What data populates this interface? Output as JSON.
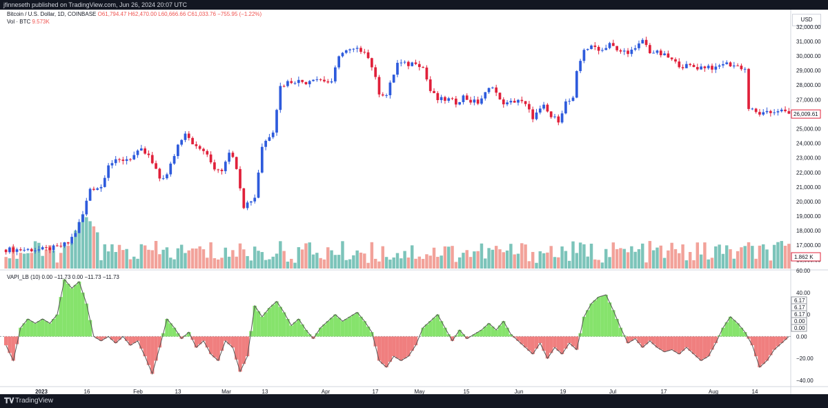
{
  "header": {
    "publish_line": "jfinneseth published on TradingView.com, Jun 26, 2024 20:07 UTC"
  },
  "legend": {
    "symbol_line": "Bitcoin / U.S. Dollar, 1D, COINBASE",
    "o": "O61,794.47",
    "h": "H62,470.00",
    "l": "L60,666.66",
    "c": "C61,033.76",
    "chg": "−755.95 (−1.22%)",
    "vol_label": "Vol · BTC",
    "vol_value": "9.573K",
    "indicator_line": "VAPI_LB (10)  0.00  −11.73  0.00  −11.73  −11.73"
  },
  "currency_label": "USD",
  "footer": {
    "brand": "TradingView"
  },
  "colors": {
    "up": "#2e5bdc",
    "down": "#e0203a",
    "vol_up": "#7cc4ba",
    "vol_down": "#f2a29a",
    "osc_pos": "#86e36c",
    "osc_neg": "#f07f7f"
  },
  "chart_data": [
    {
      "type": "candlestick",
      "title": "Bitcoin / U.S. Dollar, 1D, COINBASE",
      "price_axis_ticks": [
        "32,000.00",
        "31,000.00",
        "30,000.00",
        "29,000.00",
        "28,000.00",
        "27,000.00",
        "26,000.00",
        "25,000.00",
        "24,000.00",
        "23,000.00",
        "22,000.00",
        "21,000.00",
        "20,000.00",
        "19,000.00",
        "18,000.00",
        "17,000.00",
        "16,000.00"
      ],
      "ylim": [
        15400,
        32700
      ],
      "time_axis_ticks": [
        "2023",
        "16",
        "Feb",
        "13",
        "Mar",
        "13",
        "Apr",
        "17",
        "May",
        "15",
        "Jun",
        "19",
        "Jul",
        "17",
        "Aug",
        "14"
      ],
      "last_price_label": "26,009.61",
      "volume_label": "1.862 K",
      "close_path": [
        [
          0,
          16700
        ],
        [
          10,
          16700
        ],
        [
          14,
          16850
        ],
        [
          17,
          17150
        ],
        [
          19,
          17900
        ],
        [
          21,
          19100
        ],
        [
          23,
          20900
        ],
        [
          26,
          21000
        ],
        [
          28,
          22600
        ],
        [
          31,
          22800
        ],
        [
          34,
          23000
        ],
        [
          37,
          23500
        ],
        [
          39,
          23100
        ],
        [
          42,
          21600
        ],
        [
          44,
          21800
        ],
        [
          47,
          23900
        ],
        [
          49,
          24800
        ],
        [
          52,
          23700
        ],
        [
          54,
          23500
        ],
        [
          57,
          22300
        ],
        [
          59,
          22200
        ],
        [
          61,
          23500
        ],
        [
          63,
          22400
        ],
        [
          65,
          19700
        ],
        [
          68,
          20300
        ],
        [
          70,
          23800
        ],
        [
          73,
          24900
        ],
        [
          75,
          27900
        ],
        [
          77,
          28200
        ],
        [
          79,
          28300
        ],
        [
          82,
          28200
        ],
        [
          84,
          28500
        ],
        [
          87,
          28300
        ],
        [
          89,
          28100
        ],
        [
          91,
          30100
        ],
        [
          93,
          30300
        ],
        [
          95,
          30400
        ],
        [
          98,
          30400
        ],
        [
          100,
          29300
        ],
        [
          102,
          27500
        ],
        [
          104,
          27300
        ],
        [
          107,
          29500
        ],
        [
          110,
          29400
        ],
        [
          112,
          29600
        ],
        [
          114,
          29200
        ],
        [
          116,
          27600
        ],
        [
          118,
          27000
        ],
        [
          121,
          27000
        ],
        [
          123,
          26800
        ],
        [
          125,
          27200
        ],
        [
          127,
          26900
        ],
        [
          129,
          26800
        ],
        [
          131,
          27400
        ],
        [
          133,
          28000
        ],
        [
          135,
          26900
        ],
        [
          137,
          26700
        ],
        [
          140,
          27000
        ],
        [
          142,
          26600
        ],
        [
          144,
          25800
        ],
        [
          147,
          26500
        ],
        [
          149,
          25800
        ],
        [
          151,
          25600
        ],
        [
          153,
          26800
        ],
        [
          155,
          27000
        ],
        [
          156,
          28800
        ],
        [
          158,
          30500
        ],
        [
          161,
          30600
        ],
        [
          163,
          30400
        ],
        [
          165,
          30900
        ],
        [
          167,
          30300
        ],
        [
          170,
          30300
        ],
        [
          172,
          30400
        ],
        [
          174,
          31100
        ],
        [
          176,
          30300
        ],
        [
          178,
          30200
        ],
        [
          181,
          29900
        ],
        [
          183,
          29500
        ],
        [
          185,
          29300
        ],
        [
          187,
          29300
        ],
        [
          189,
          29200
        ],
        [
          192,
          29300
        ],
        [
          194,
          29100
        ],
        [
          196,
          29500
        ],
        [
          198,
          29400
        ],
        [
          200,
          29300
        ],
        [
          202,
          29100
        ],
        [
          203,
          26400
        ],
        [
          205,
          26100
        ],
        [
          207,
          26000
        ],
        [
          209,
          26100
        ],
        [
          211,
          26300
        ],
        [
          214,
          26000
        ]
      ],
      "n_days": 215
    },
    {
      "type": "bar",
      "title": "VAPI_LB (10)",
      "ylim": [
        -45,
        60
      ],
      "yticks": [
        "60.00",
        "40.00",
        "20.00",
        "0.00",
        "−20.00",
        "−40.00"
      ],
      "right_labels": [
        "6.17",
        "6.17",
        "6.17",
        "0.00",
        "0.00"
      ],
      "value_path": [
        [
          0,
          -8
        ],
        [
          2,
          -22
        ],
        [
          4,
          8
        ],
        [
          6,
          16
        ],
        [
          8,
          12
        ],
        [
          10,
          16
        ],
        [
          12,
          12
        ],
        [
          14,
          20
        ],
        [
          16,
          52
        ],
        [
          18,
          44
        ],
        [
          20,
          50
        ],
        [
          22,
          30
        ],
        [
          24,
          0
        ],
        [
          26,
          -4
        ],
        [
          28,
          0
        ],
        [
          30,
          -6
        ],
        [
          32,
          0
        ],
        [
          34,
          -8
        ],
        [
          36,
          -4
        ],
        [
          38,
          -18
        ],
        [
          40,
          -34
        ],
        [
          42,
          -10
        ],
        [
          44,
          16
        ],
        [
          46,
          8
        ],
        [
          48,
          -2
        ],
        [
          50,
          4
        ],
        [
          52,
          -10
        ],
        [
          54,
          -4
        ],
        [
          56,
          -16
        ],
        [
          58,
          -22
        ],
        [
          60,
          -4
        ],
        [
          62,
          -10
        ],
        [
          64,
          -32
        ],
        [
          66,
          -18
        ],
        [
          68,
          28
        ],
        [
          70,
          18
        ],
        [
          72,
          26
        ],
        [
          74,
          32
        ],
        [
          76,
          22
        ],
        [
          78,
          10
        ],
        [
          80,
          16
        ],
        [
          82,
          6
        ],
        [
          84,
          -2
        ],
        [
          86,
          8
        ],
        [
          88,
          14
        ],
        [
          90,
          20
        ],
        [
          92,
          14
        ],
        [
          94,
          18
        ],
        [
          96,
          22
        ],
        [
          98,
          14
        ],
        [
          100,
          4
        ],
        [
          102,
          -22
        ],
        [
          104,
          -28
        ],
        [
          106,
          -18
        ],
        [
          108,
          -22
        ],
        [
          110,
          -18
        ],
        [
          112,
          -8
        ],
        [
          114,
          8
        ],
        [
          116,
          14
        ],
        [
          118,
          20
        ],
        [
          120,
          8
        ],
        [
          122,
          -4
        ],
        [
          124,
          6
        ],
        [
          126,
          -2
        ],
        [
          128,
          2
        ],
        [
          130,
          6
        ],
        [
          132,
          12
        ],
        [
          134,
          6
        ],
        [
          136,
          14
        ],
        [
          138,
          2
        ],
        [
          140,
          -4
        ],
        [
          142,
          -10
        ],
        [
          144,
          -16
        ],
        [
          146,
          -6
        ],
        [
          148,
          -20
        ],
        [
          150,
          -10
        ],
        [
          152,
          -16
        ],
        [
          154,
          -6
        ],
        [
          156,
          -12
        ],
        [
          158,
          18
        ],
        [
          160,
          30
        ],
        [
          162,
          36
        ],
        [
          164,
          38
        ],
        [
          166,
          24
        ],
        [
          168,
          8
        ],
        [
          170,
          -6
        ],
        [
          172,
          -2
        ],
        [
          174,
          -10
        ],
        [
          176,
          -4
        ],
        [
          178,
          -10
        ],
        [
          180,
          -14
        ],
        [
          182,
          -12
        ],
        [
          184,
          -16
        ],
        [
          186,
          -10
        ],
        [
          188,
          -16
        ],
        [
          190,
          -22
        ],
        [
          192,
          -18
        ],
        [
          194,
          -6
        ],
        [
          196,
          8
        ],
        [
          198,
          18
        ],
        [
          200,
          12
        ],
        [
          202,
          4
        ],
        [
          204,
          -8
        ],
        [
          206,
          -28
        ],
        [
          208,
          -22
        ],
        [
          210,
          -12
        ],
        [
          212,
          -6
        ],
        [
          214,
          0
        ]
      ]
    }
  ]
}
